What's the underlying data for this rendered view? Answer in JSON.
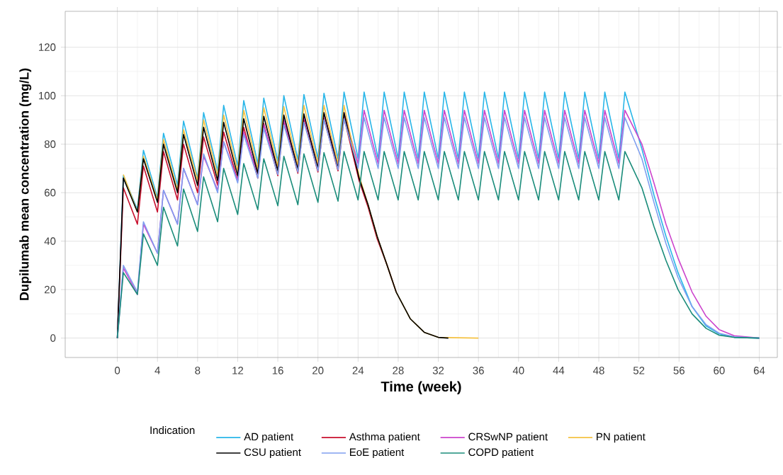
{
  "chart_data": {
    "type": "line",
    "xlabel": "Time (week)",
    "ylabel": "Dupilumab mean concentration (mg/L)",
    "legend_title": "Indication",
    "xlim": [
      -5.2,
      65.8
    ],
    "ylim": [
      -8,
      134.8
    ],
    "xticks": [
      0,
      4,
      8,
      12,
      16,
      20,
      24,
      28,
      32,
      36,
      40,
      44,
      48,
      52,
      56,
      60,
      64
    ],
    "yticks": [
      0,
      20,
      40,
      60,
      80,
      100,
      120
    ],
    "grid": true,
    "legend": "bottom",
    "marker": "none",
    "line_style": "solid",
    "series": [
      {
        "name": "AD patient",
        "color": "#29b6e8",
        "x": [
          0,
          0.6,
          2,
          2.6,
          4,
          4.6,
          6,
          6.6,
          8,
          8.6,
          10,
          10.6,
          12,
          12.6,
          14,
          14.6,
          16,
          16.6,
          18,
          18.6,
          20,
          20.6,
          22,
          22.6,
          24,
          24.6,
          26,
          26.6,
          28,
          28.6,
          30,
          30.6,
          32,
          32.6,
          34,
          34.6,
          36,
          36.6,
          38,
          38.6,
          40,
          40.6,
          42,
          42.6,
          44,
          44.6,
          46,
          46.6,
          48,
          48.6,
          50,
          50.6,
          52.3,
          53.5,
          54.7,
          55.9,
          57.3,
          58.7,
          60,
          61.5,
          64
        ],
        "values": [
          0,
          67,
          53,
          77.5,
          58,
          84.5,
          63,
          89.5,
          66,
          93,
          69,
          96,
          71,
          98,
          72,
          99,
          73,
          100,
          73.5,
          100.5,
          74,
          101,
          74,
          101.5,
          74,
          101.5,
          74,
          101.5,
          74,
          101.5,
          74,
          101.5,
          74,
          101.5,
          74,
          101.5,
          74,
          101.5,
          74,
          101.5,
          74,
          101.5,
          74,
          101.5,
          74,
          101.5,
          74,
          101.5,
          74,
          101.5,
          74,
          101.5,
          78,
          59,
          42,
          27,
          13,
          5,
          1.8,
          0.3,
          0
        ]
      },
      {
        "name": "Asthma patient",
        "color": "#c8102e",
        "x": [
          0,
          0.6,
          2,
          2.6,
          4,
          4.6,
          6,
          6.6,
          8,
          8.6,
          10,
          10.6,
          12,
          12.6,
          14,
          14.6,
          16,
          16.6,
          18,
          18.6,
          20,
          20.6,
          22,
          22.6,
          24.1,
          25,
          25.9,
          26.9,
          27.8
        ],
        "values": [
          0,
          62,
          47,
          71,
          52,
          77,
          57,
          80,
          60,
          83,
          63,
          85,
          65,
          87,
          66,
          88.5,
          67,
          89.5,
          68,
          90,
          68.5,
          90.5,
          69,
          91,
          65,
          54,
          41,
          30,
          19
        ]
      },
      {
        "name": "CRSwNP patient",
        "color": "#cc44cc",
        "x": [
          0,
          0.6,
          2,
          2.6,
          4,
          4.6,
          6,
          6.6,
          8,
          8.6,
          10,
          10.6,
          12,
          12.6,
          14,
          14.6,
          16,
          16.6,
          18,
          18.6,
          20,
          20.6,
          22,
          22.6,
          24,
          24.6,
          26,
          26.6,
          28,
          28.6,
          30,
          30.6,
          32,
          32.6,
          34,
          34.6,
          36,
          36.6,
          38,
          38.6,
          40,
          40.6,
          42,
          42.6,
          44,
          44.6,
          46,
          46.6,
          48,
          48.6,
          50,
          50.6,
          52.3,
          53.5,
          54.7,
          55.9,
          57.3,
          58.7,
          60,
          61.5,
          64
        ],
        "values": [
          0,
          29,
          18,
          47,
          35,
          61,
          47,
          70,
          55,
          75,
          61,
          81,
          65,
          85,
          68,
          88,
          69.5,
          90,
          70.5,
          91.5,
          71,
          92.5,
          71.5,
          93,
          72,
          94,
          72,
          94,
          72,
          94,
          72,
          94,
          72,
          94,
          72,
          94,
          72,
          94,
          72,
          94,
          72,
          94,
          72,
          94,
          72,
          94,
          72,
          94,
          72,
          94,
          72,
          94,
          80,
          64,
          47,
          33,
          19,
          9,
          3.5,
          1,
          0
        ]
      },
      {
        "name": "PN patient",
        "color": "#f5c242",
        "x": [
          0.6,
          2,
          2.6,
          4,
          4.6,
          6,
          6.6,
          8,
          8.6,
          10,
          10.6,
          12,
          12.6,
          14,
          14.6,
          16,
          16.6,
          18,
          18.6,
          20,
          20.6,
          22,
          22.6,
          24.1,
          25,
          25.9,
          26.9,
          27.8,
          29.2,
          30.6,
          32,
          36
        ],
        "values": [
          67.5,
          52,
          75,
          57,
          82,
          61,
          86,
          65,
          90,
          67,
          92,
          69,
          94,
          70,
          95,
          71,
          95.5,
          71.5,
          96,
          72,
          96,
          72,
          96,
          67,
          55,
          42,
          30,
          19,
          8,
          2.4,
          0.3,
          0
        ]
      },
      {
        "name": "CSU patient",
        "color": "#000000",
        "x": [
          0,
          0.6,
          2,
          2.6,
          4,
          4.6,
          6,
          6.6,
          8,
          8.6,
          10,
          10.6,
          12,
          12.6,
          14,
          14.6,
          16,
          16.6,
          18,
          18.6,
          20,
          20.6,
          22,
          22.6,
          24.1,
          25,
          25.9,
          26.9,
          27.8,
          29.2,
          30.6,
          32,
          33
        ],
        "values": [
          0,
          66,
          52,
          74,
          56,
          80,
          60,
          84,
          63,
          87,
          65,
          89,
          67,
          90.5,
          68,
          91.5,
          69,
          92,
          69.5,
          92.5,
          70,
          93,
          70,
          93,
          66,
          55,
          42,
          30,
          19,
          8,
          2.4,
          0.3,
          0
        ]
      },
      {
        "name": "EoE patient",
        "color": "#7f9fef",
        "x": [
          0,
          0.6,
          2,
          2.6,
          4,
          4.6,
          6,
          6.6,
          8,
          8.6,
          10,
          10.6,
          12,
          12.6,
          14,
          14.6,
          16,
          16.6,
          18,
          18.6,
          20,
          20.6,
          22,
          22.6,
          24,
          24.6,
          26,
          26.6,
          28,
          28.6,
          30,
          30.6,
          32,
          32.6,
          34,
          34.6,
          36,
          36.6,
          38,
          38.6,
          40,
          40.6,
          42,
          42.6,
          44,
          44.6,
          46,
          46.6,
          48,
          48.6,
          50,
          50.6,
          52.3,
          53.5,
          54.7,
          55.9,
          57.3,
          58.7,
          60,
          61.5,
          64
        ],
        "values": [
          0,
          30,
          19,
          48,
          35,
          61,
          47,
          70,
          55,
          76,
          60,
          81,
          64,
          84,
          66,
          86.5,
          67.5,
          88,
          68.5,
          89,
          69,
          90,
          69.5,
          90.5,
          70,
          91,
          70,
          91,
          70,
          91,
          70,
          91,
          70,
          91,
          70,
          91,
          70,
          91,
          70,
          91,
          70,
          91,
          70,
          91,
          70,
          91,
          70,
          91,
          70,
          91,
          70,
          91,
          74,
          56,
          39,
          25,
          13,
          5.5,
          2,
          0.5,
          0
        ]
      },
      {
        "name": "COPD patient",
        "color": "#1a8c7a",
        "x": [
          0,
          0.6,
          2,
          2.6,
          4,
          4.6,
          6,
          6.6,
          8,
          8.6,
          10,
          10.6,
          12,
          12.6,
          14,
          14.6,
          16,
          16.6,
          18,
          18.6,
          20,
          20.6,
          22,
          22.6,
          24,
          24.6,
          26,
          26.6,
          28,
          28.6,
          30,
          30.6,
          32,
          32.6,
          34,
          34.6,
          36,
          36.6,
          38,
          38.6,
          40,
          40.6,
          42,
          42.6,
          44,
          44.6,
          46,
          46.6,
          48,
          48.6,
          50,
          50.6,
          52.3,
          53.5,
          54.7,
          55.9,
          57.3,
          58.7,
          60,
          61.5,
          64
        ],
        "values": [
          0,
          27,
          18,
          43,
          30,
          54,
          38,
          61.5,
          44,
          66.5,
          48,
          70,
          51,
          72,
          53,
          74,
          54.6,
          75,
          55,
          76,
          56,
          76.5,
          56.5,
          77,
          57,
          77,
          57,
          77,
          57,
          77,
          57,
          77,
          57,
          77,
          57,
          77,
          57,
          77,
          57,
          77,
          57,
          77,
          57,
          77,
          57,
          77,
          57,
          77,
          57,
          77,
          57,
          77,
          62,
          46,
          32,
          20,
          10,
          4,
          1.2,
          0.3,
          0
        ]
      }
    ]
  }
}
